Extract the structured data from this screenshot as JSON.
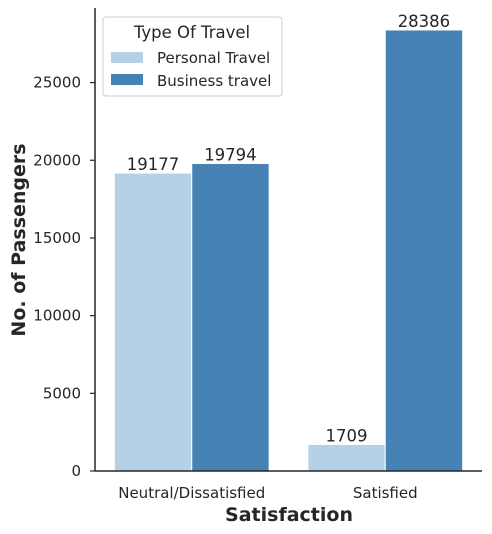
{
  "chart_data": {
    "type": "bar",
    "title": "",
    "xlabel": "Satisfaction",
    "ylabel": "No. of Passengers",
    "categories": [
      "Neutral/Dissatisfied",
      "Satisfied"
    ],
    "series": [
      {
        "name": "Personal Travel",
        "values": [
          19177,
          1709
        ],
        "color": "#b4d1e6"
      },
      {
        "name": "Business travel",
        "values": [
          19794,
          28386
        ],
        "color": "#4682b4"
      }
    ],
    "ylim": [
      0,
      29800
    ],
    "yticks": [
      0,
      5000,
      10000,
      15000,
      20000,
      25000
    ],
    "legend": {
      "title": "Type Of Travel",
      "placement": "top-left"
    },
    "grid": false,
    "data_labels": true
  }
}
